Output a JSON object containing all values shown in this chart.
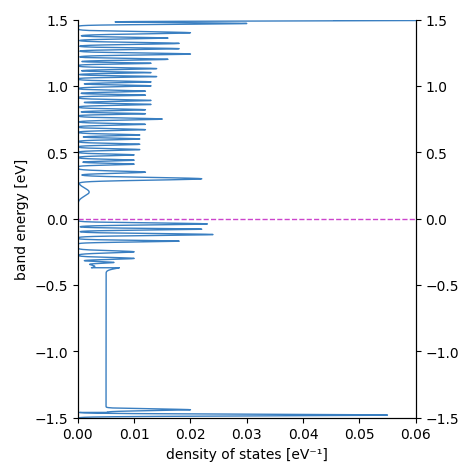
{
  "title": "",
  "xlabel": "density of states [eV⁻¹]",
  "ylabel": "band energy [eV]",
  "xlim": [
    0.0,
    0.06
  ],
  "ylim": [
    -1.5,
    1.5
  ],
  "line_color": "#3a7fc1",
  "dashed_line_color": "#cc44cc",
  "dashed_line_y": 0.0,
  "dashed_line_style": "--",
  "figsize": [
    4.74,
    4.77
  ],
  "dpi": 100
}
